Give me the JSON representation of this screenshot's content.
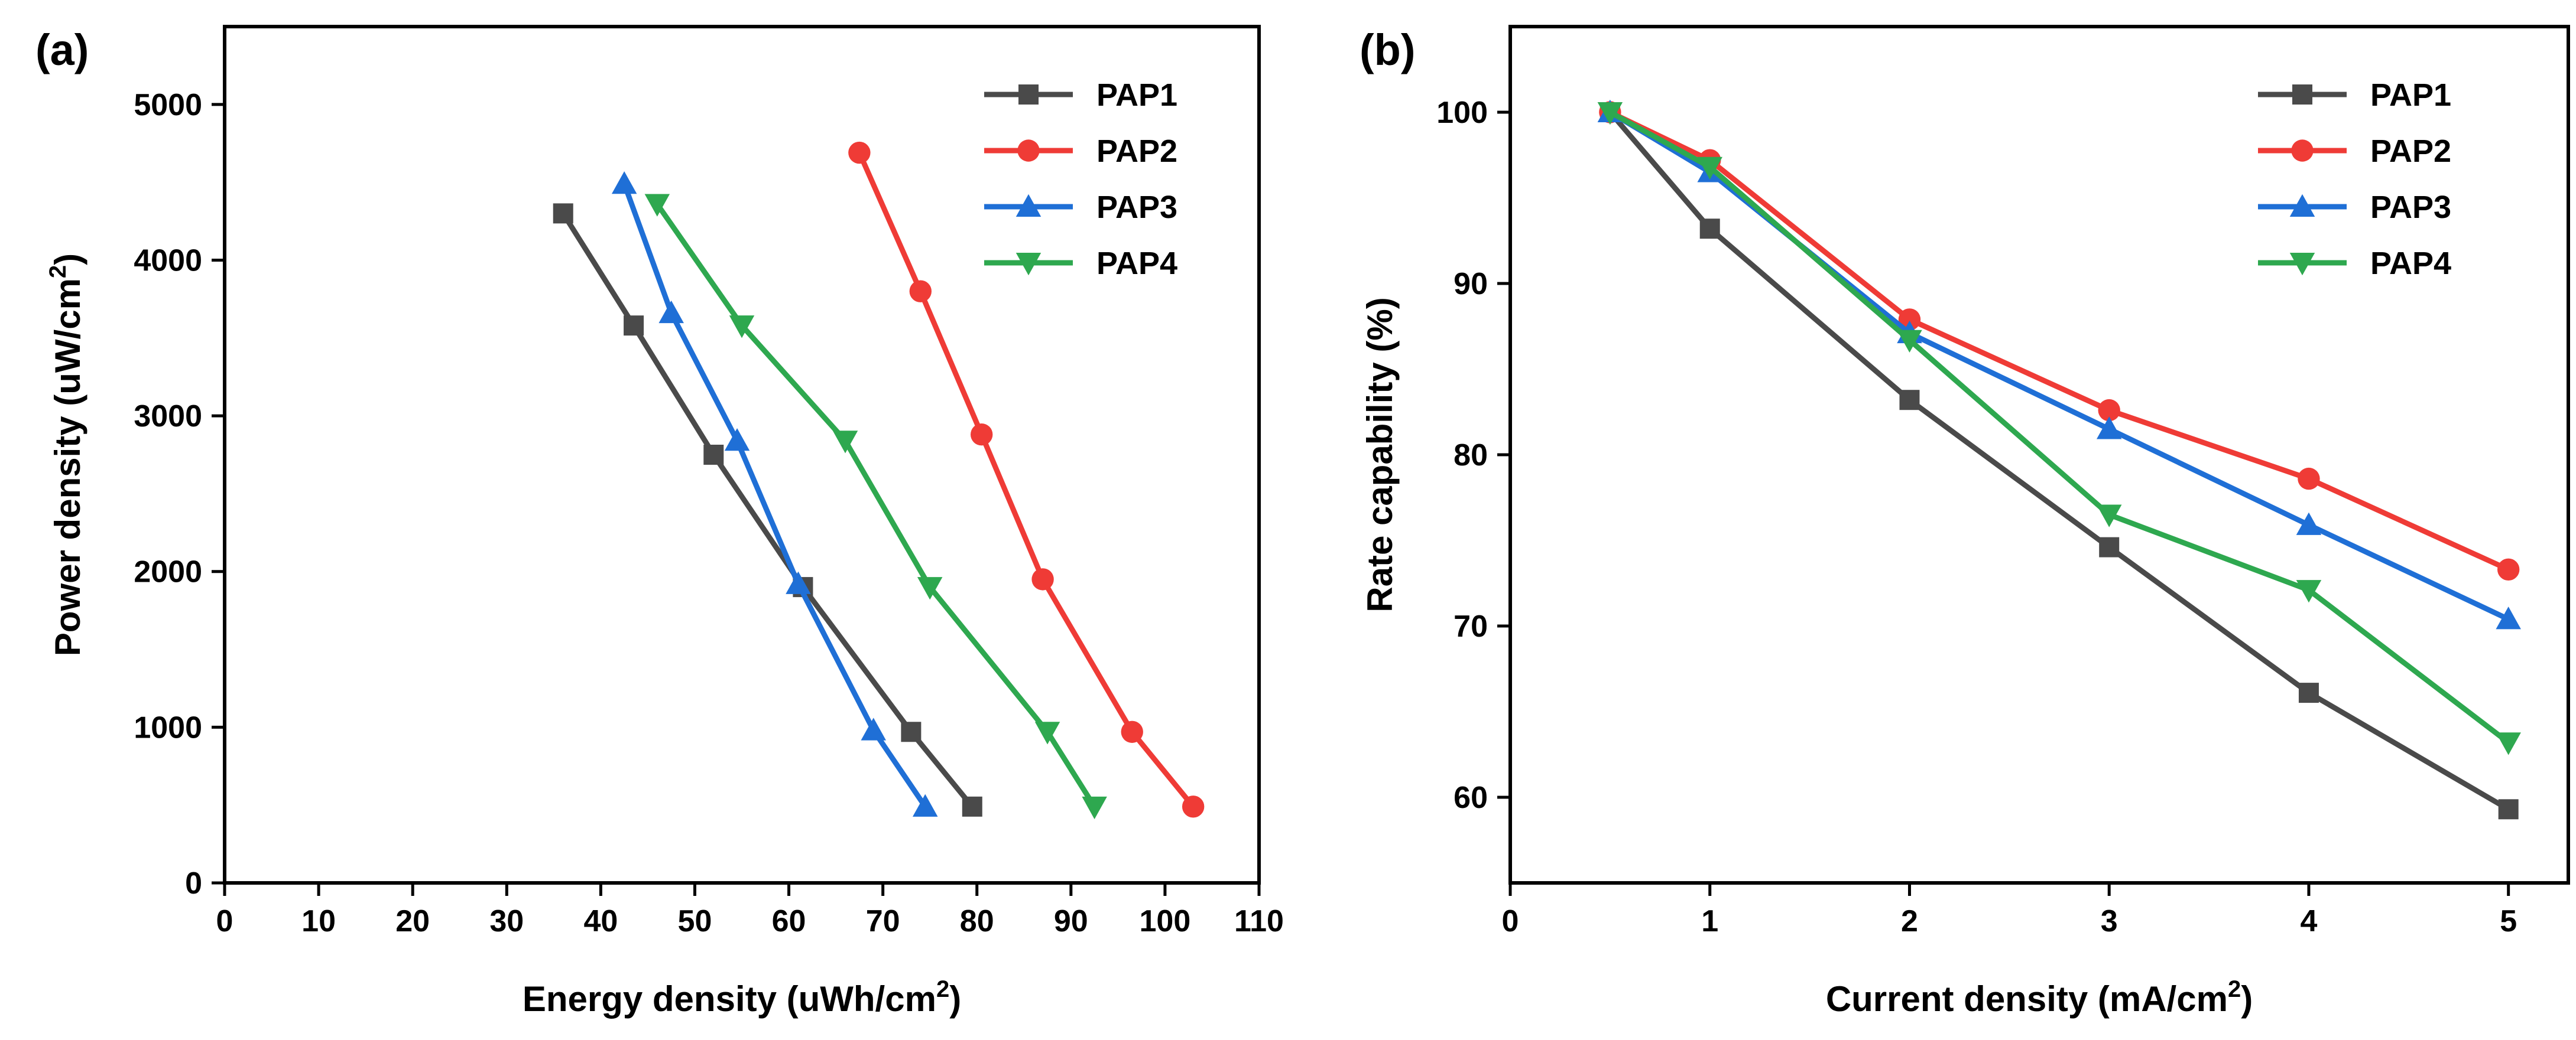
{
  "chart_data": [
    {
      "panel_label": "(a)",
      "type": "line",
      "xlabel": "Energy density (uWh/cm",
      "xlabel_sup": "2",
      "xlabel_end": ")",
      "ylabel": "Power density (uW/cm",
      "ylabel_sup": "2",
      "ylabel_end": ")",
      "xlim": [
        0,
        110
      ],
      "ylim": [
        0,
        5500
      ],
      "xticks": [
        0,
        10,
        20,
        30,
        40,
        50,
        60,
        70,
        80,
        90,
        100,
        110
      ],
      "yticks": [
        0,
        1000,
        2000,
        3000,
        4000,
        5000
      ],
      "legend_position": "top-right",
      "series": [
        {
          "name": "PAP1",
          "color": "#4a4a4a",
          "marker": "square",
          "x": [
            36,
            43.5,
            52,
            61.5,
            73,
            79.5
          ],
          "y": [
            4300,
            3580,
            2750,
            1900,
            970,
            490
          ]
        },
        {
          "name": "PAP2",
          "color": "#ef3b36",
          "marker": "circle",
          "x": [
            67.5,
            74,
            80.5,
            87,
            96.5,
            103
          ],
          "y": [
            4690,
            3800,
            2880,
            1950,
            970,
            490
          ]
        },
        {
          "name": "PAP3",
          "color": "#1f6fd6",
          "marker": "triangle-up",
          "x": [
            42.5,
            47.5,
            54.5,
            61,
            69,
            74.5
          ],
          "y": [
            4490,
            3660,
            2840,
            1920,
            980,
            490
          ]
        },
        {
          "name": "PAP4",
          "color": "#2ea84f",
          "marker": "triangle-down",
          "x": [
            46,
            55,
            66,
            75,
            87.5,
            92.5
          ],
          "y": [
            4360,
            3580,
            2840,
            1900,
            970,
            490
          ]
        }
      ]
    },
    {
      "panel_label": "(b)",
      "type": "line",
      "xlabel": "Current density (mA/cm",
      "xlabel_sup": "2",
      "xlabel_end": ")",
      "ylabel": "Rate capability (%)",
      "ylabel_sup": "",
      "ylabel_end": "",
      "xlim": [
        0,
        5.3
      ],
      "ylim": [
        55,
        105
      ],
      "xticks": [
        0,
        1,
        2,
        3,
        4,
        5
      ],
      "yticks": [
        60,
        70,
        80,
        90,
        100
      ],
      "legend_position": "top-right",
      "series": [
        {
          "name": "PAP1",
          "color": "#4a4a4a",
          "marker": "square",
          "x": [
            0.5,
            1,
            2,
            3,
            4,
            5
          ],
          "y": [
            100,
            93.2,
            83.2,
            74.6,
            66.1,
            59.3
          ]
        },
        {
          "name": "PAP2",
          "color": "#ef3b36",
          "marker": "circle",
          "x": [
            0.5,
            1,
            2,
            3,
            4,
            5
          ],
          "y": [
            100,
            97.2,
            87.9,
            82.6,
            78.6,
            73.3
          ]
        },
        {
          "name": "PAP3",
          "color": "#1f6fd6",
          "marker": "triangle-up",
          "x": [
            0.5,
            1,
            2,
            3,
            4,
            5
          ],
          "y": [
            100,
            96.5,
            87.1,
            81.5,
            75.9,
            70.4
          ]
        },
        {
          "name": "PAP4",
          "color": "#2ea84f",
          "marker": "triangle-down",
          "x": [
            0.5,
            1,
            2,
            3,
            4,
            5
          ],
          "y": [
            100,
            96.8,
            86.7,
            76.5,
            72.1,
            63.2
          ]
        }
      ]
    }
  ]
}
